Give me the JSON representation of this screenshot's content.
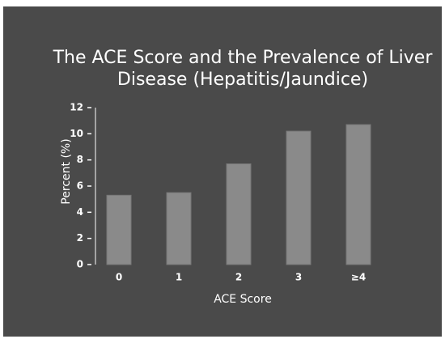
{
  "chart_data": {
    "type": "bar",
    "title": [
      "The ACE Score and the Prevalence of Liver",
      "Disease  (Hepatitis/Jaundice)"
    ],
    "categories": [
      "0",
      "1",
      "2",
      "3",
      "≥4"
    ],
    "values": [
      5.3,
      5.5,
      7.7,
      10.2,
      10.7
    ],
    "color": "#8a8a8a",
    "ylim": [
      0,
      12
    ],
    "yticks": [
      0,
      2,
      4,
      6,
      8,
      10,
      12
    ],
    "xlabel": "ACE  Score",
    "ylabel": "Percent    (%)"
  }
}
